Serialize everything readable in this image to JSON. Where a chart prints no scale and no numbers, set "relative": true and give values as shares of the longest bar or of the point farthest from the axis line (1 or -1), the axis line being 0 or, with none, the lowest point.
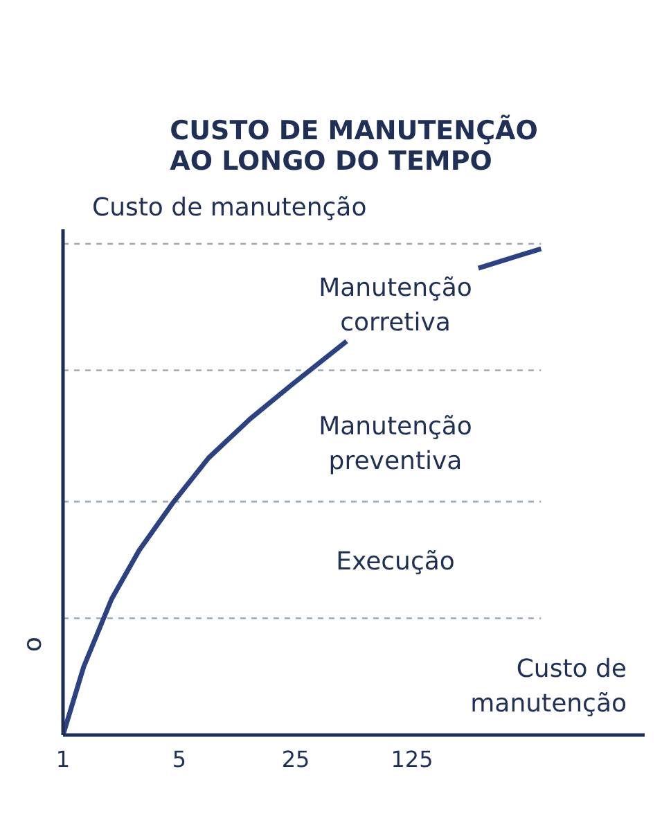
{
  "chart_data": {
    "type": "line",
    "title": "CUSTO DE MANUTENÇÃO\nAO LONGO DO TEMPO",
    "ylabel": "Custo de manutenção",
    "xlabel": "Custo de\nmanutenção",
    "relative": true,
    "log": "x",
    "xlim": [
      1,
      3125
    ],
    "xticks": [
      1,
      5,
      25,
      125
    ],
    "x": [
      1,
      1.33,
      1.96,
      2.87,
      4.63,
      7.5,
      13.3,
      23.6,
      50.6,
      120,
      313,
      745
    ],
    "series": [
      {
        "color": "#2b4180",
        "values": [
          0,
          0.14,
          0.28,
          0.38,
          0.48,
          0.57,
          0.65,
          0.72,
          0.81,
          null,
          0.96,
          1
        ]
      }
    ],
    "ref_lines": [
      {
        "axis": "y",
        "value": 1.01,
        "color": "#9aa8bb",
        "line_style": "dashed"
      },
      {
        "axis": "y",
        "value": 0.75,
        "color": "#9aa8bb",
        "line_style": "dashed"
      },
      {
        "axis": "y",
        "value": 0.48,
        "color": "#9aa8bb",
        "line_style": "dashed"
      },
      {
        "axis": "y",
        "value": 0.24,
        "color": "#9aa8bb",
        "line_style": "dashed"
      }
    ],
    "annotations": [
      "Manutenção\ncorretiva",
      "Manutenção\npreventiva",
      "Execução",
      "o"
    ],
    "grid": false,
    "marker": "none",
    "line_style": "solid"
  }
}
